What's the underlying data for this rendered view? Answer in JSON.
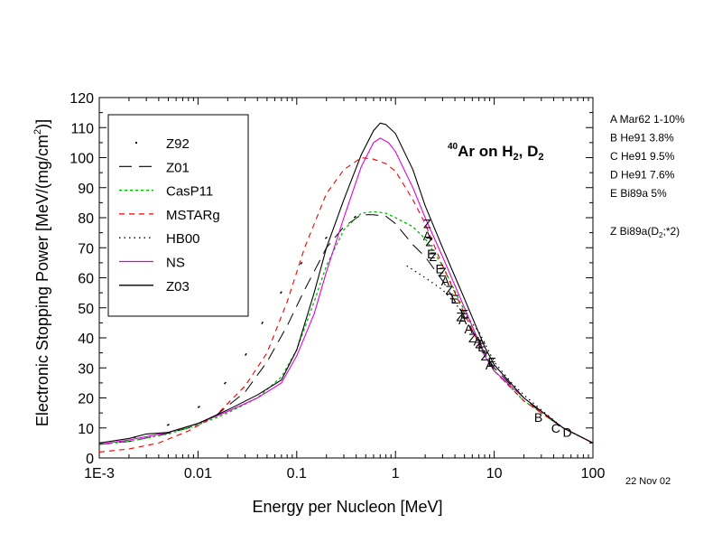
{
  "chart_data": {
    "type": "line",
    "x_scale": "log",
    "xlabel": "Energy per Nucleon [MeV]",
    "ylabel": "Electronic Stopping Power [MeV/(mg/cm",
    "ylabel_sup": "2",
    "ylabel_tail": ")]",
    "xlim": [
      0.001,
      100
    ],
    "ylim": [
      0,
      120
    ],
    "x_ticks": [
      {
        "value": 0.001,
        "label": "1E-3"
      },
      {
        "value": 0.01,
        "label": "0.01"
      },
      {
        "value": 0.1,
        "label": "0.1"
      },
      {
        "value": 1,
        "label": "1"
      },
      {
        "value": 10,
        "label": "10"
      },
      {
        "value": 100,
        "label": "100"
      }
    ],
    "y_ticks": [
      0,
      10,
      20,
      30,
      40,
      50,
      60,
      70,
      80,
      90,
      100,
      110,
      120
    ],
    "inset_title": {
      "sup": "40",
      "base": "Ar on H",
      "sub1": "2",
      "mid": ", D",
      "sub2": "2"
    },
    "legend_position": "top-left",
    "series": [
      {
        "name": "Z92",
        "color": "#000000",
        "style": "sparse-dots",
        "points": [
          [
            0.001,
            4.5
          ],
          [
            0.0017,
            6
          ],
          [
            0.003,
            7.8
          ],
          [
            0.0063,
            12.5
          ],
          [
            0.012,
            18.5
          ],
          [
            0.025,
            29
          ],
          [
            0.05,
            48
          ],
          [
            0.1,
            63
          ],
          [
            0.15,
            70
          ],
          [
            0.25,
            76
          ],
          [
            0.4,
            80.5
          ],
          [
            0.6,
            81
          ],
          [
            0.85,
            79
          ]
        ]
      },
      {
        "name": "Z01",
        "color": "#000000",
        "style": "long-dash",
        "points": [
          [
            0.001,
            4.5
          ],
          [
            0.002,
            5.5
          ],
          [
            0.004,
            7.5
          ],
          [
            0.008,
            10
          ],
          [
            0.015,
            14
          ],
          [
            0.03,
            22
          ],
          [
            0.05,
            32
          ],
          [
            0.08,
            44
          ],
          [
            0.12,
            56
          ],
          [
            0.2,
            70
          ],
          [
            0.3,
            77
          ],
          [
            0.45,
            81
          ],
          [
            0.6,
            81
          ],
          [
            0.8,
            80.5
          ],
          [
            1,
            78
          ],
          [
            1.5,
            71
          ],
          [
            2,
            67
          ],
          [
            3,
            59
          ],
          [
            5,
            47
          ],
          [
            8,
            35
          ],
          [
            10,
            30
          ],
          [
            20,
            20
          ],
          [
            30,
            15
          ],
          [
            50,
            10
          ],
          [
            100,
            5
          ]
        ]
      },
      {
        "name": "CasP11",
        "color": "#00bb00",
        "style": "short-dash",
        "points": [
          [
            0.001,
            4.5
          ],
          [
            0.002,
            5.5
          ],
          [
            0.005,
            8
          ],
          [
            0.01,
            11
          ],
          [
            0.02,
            15
          ],
          [
            0.04,
            20
          ],
          [
            0.07,
            27
          ],
          [
            0.1,
            36
          ],
          [
            0.15,
            52
          ],
          [
            0.2,
            64
          ],
          [
            0.3,
            76
          ],
          [
            0.45,
            81.5
          ],
          [
            0.6,
            82
          ],
          [
            0.8,
            81.5
          ],
          [
            1,
            80
          ],
          [
            1.5,
            77
          ],
          [
            2,
            73
          ],
          [
            3,
            64
          ],
          [
            5,
            49
          ],
          [
            8,
            35
          ],
          [
            10,
            29
          ],
          [
            20,
            19
          ],
          [
            50,
            10
          ],
          [
            100,
            5
          ]
        ]
      },
      {
        "name": "MSTARg",
        "color": "#ee0000",
        "style": "dash",
        "points": [
          [
            0.001,
            2
          ],
          [
            0.002,
            3
          ],
          [
            0.004,
            5
          ],
          [
            0.008,
            9
          ],
          [
            0.015,
            14
          ],
          [
            0.03,
            24
          ],
          [
            0.05,
            35
          ],
          [
            0.08,
            52
          ],
          [
            0.12,
            70
          ],
          [
            0.2,
            88
          ],
          [
            0.3,
            96
          ],
          [
            0.45,
            100
          ],
          [
            0.6,
            99.5
          ],
          [
            0.8,
            98
          ],
          [
            1,
            95.5
          ],
          [
            1.5,
            86
          ],
          [
            2,
            78
          ],
          [
            3,
            64
          ],
          [
            5,
            48
          ],
          [
            8,
            34
          ],
          [
            10,
            29
          ],
          [
            20,
            19
          ],
          [
            50,
            10
          ],
          [
            100,
            5
          ]
        ]
      },
      {
        "name": "HB00",
        "color": "#000000",
        "style": "dotted",
        "points": [
          [
            1.3,
            64
          ],
          [
            2,
            60
          ],
          [
            3,
            56
          ],
          [
            5,
            48
          ],
          [
            7,
            42
          ],
          [
            10,
            32
          ],
          [
            15,
            25
          ],
          [
            20,
            21
          ],
          [
            30,
            16
          ],
          [
            50,
            10
          ],
          [
            100,
            5
          ]
        ]
      },
      {
        "name": "NS",
        "color": "#dd00dd",
        "style": "solid",
        "points": [
          [
            0.001,
            4.5
          ],
          [
            0.002,
            6
          ],
          [
            0.005,
            8.5
          ],
          [
            0.01,
            11.5
          ],
          [
            0.02,
            15.5
          ],
          [
            0.04,
            20
          ],
          [
            0.07,
            25
          ],
          [
            0.1,
            34
          ],
          [
            0.15,
            48
          ],
          [
            0.2,
            62
          ],
          [
            0.3,
            80
          ],
          [
            0.45,
            97
          ],
          [
            0.6,
            105
          ],
          [
            0.7,
            106.5
          ],
          [
            0.85,
            105
          ],
          [
            1,
            102
          ],
          [
            1.5,
            90
          ],
          [
            2,
            80
          ],
          [
            3,
            67
          ],
          [
            5,
            50
          ],
          [
            8,
            34
          ],
          [
            10,
            29
          ],
          [
            20,
            20
          ],
          [
            50,
            10
          ],
          [
            100,
            5
          ]
        ]
      },
      {
        "name": "Z03",
        "color": "#000000",
        "style": "solid",
        "points": [
          [
            0.001,
            5
          ],
          [
            0.002,
            6.5
          ],
          [
            0.003,
            8
          ],
          [
            0.005,
            8.5
          ],
          [
            0.01,
            11.5
          ],
          [
            0.02,
            16
          ],
          [
            0.04,
            21
          ],
          [
            0.07,
            26
          ],
          [
            0.1,
            36
          ],
          [
            0.15,
            55
          ],
          [
            0.2,
            70
          ],
          [
            0.3,
            86
          ],
          [
            0.45,
            101
          ],
          [
            0.6,
            109
          ],
          [
            0.7,
            111.5
          ],
          [
            0.8,
            111
          ],
          [
            1,
            108
          ],
          [
            1.5,
            96
          ],
          [
            2,
            84
          ],
          [
            3,
            70
          ],
          [
            5,
            53
          ],
          [
            8,
            37
          ],
          [
            10,
            31
          ],
          [
            20,
            20
          ],
          [
            50,
            10
          ],
          [
            100,
            5
          ]
        ]
      }
    ],
    "experimental_points": [
      {
        "label": "A",
        "x": 2.1,
        "y": 74
      },
      {
        "label": "A",
        "x": 3.2,
        "y": 59
      },
      {
        "label": "A",
        "x": 4.8,
        "y": 46
      },
      {
        "label": "A",
        "x": 5.5,
        "y": 43
      },
      {
        "label": "A",
        "x": 6.8,
        "y": 39
      },
      {
        "label": "A",
        "x": 9,
        "y": 31
      },
      {
        "label": "B",
        "x": 28,
        "y": 13.5
      },
      {
        "label": "C",
        "x": 42,
        "y": 10
      },
      {
        "label": "D",
        "x": 55,
        "y": 8.5
      },
      {
        "label": "E",
        "x": 2.3,
        "y": 68
      },
      {
        "label": "E",
        "x": 2.8,
        "y": 63
      },
      {
        "label": "E",
        "x": 4,
        "y": 53
      },
      {
        "label": "E",
        "x": 5,
        "y": 48
      },
      {
        "label": "E",
        "x": 7.5,
        "y": 37
      },
      {
        "label": "E",
        "x": 9.5,
        "y": 32
      },
      {
        "label": "Z",
        "x": 2.1,
        "y": 78
      },
      {
        "label": "Z",
        "x": 2.2,
        "y": 72
      },
      {
        "label": "Z",
        "x": 2.4,
        "y": 67
      },
      {
        "label": "Z",
        "x": 3,
        "y": 62
      },
      {
        "label": "Z",
        "x": 3.5,
        "y": 56
      },
      {
        "label": "Z",
        "x": 4.5,
        "y": 47
      },
      {
        "label": "Z",
        "x": 6,
        "y": 40
      },
      {
        "label": "Z",
        "x": 7,
        "y": 38
      },
      {
        "label": "Z",
        "x": 8,
        "y": 34
      }
    ],
    "side_notes": [
      {
        "text": "A Mar62 1-10%"
      },
      {
        "text": "B He91  3.8%"
      },
      {
        "text": "C He91  9.5%"
      },
      {
        "text": "D He91  7.6%"
      },
      {
        "text": "E Bi89a 5%"
      },
      {
        "text": ""
      },
      {
        "text": "Z Bi89a(D",
        "sub": "2",
        "tail": ";*2)"
      }
    ],
    "date_label": "22 Nov 02"
  }
}
